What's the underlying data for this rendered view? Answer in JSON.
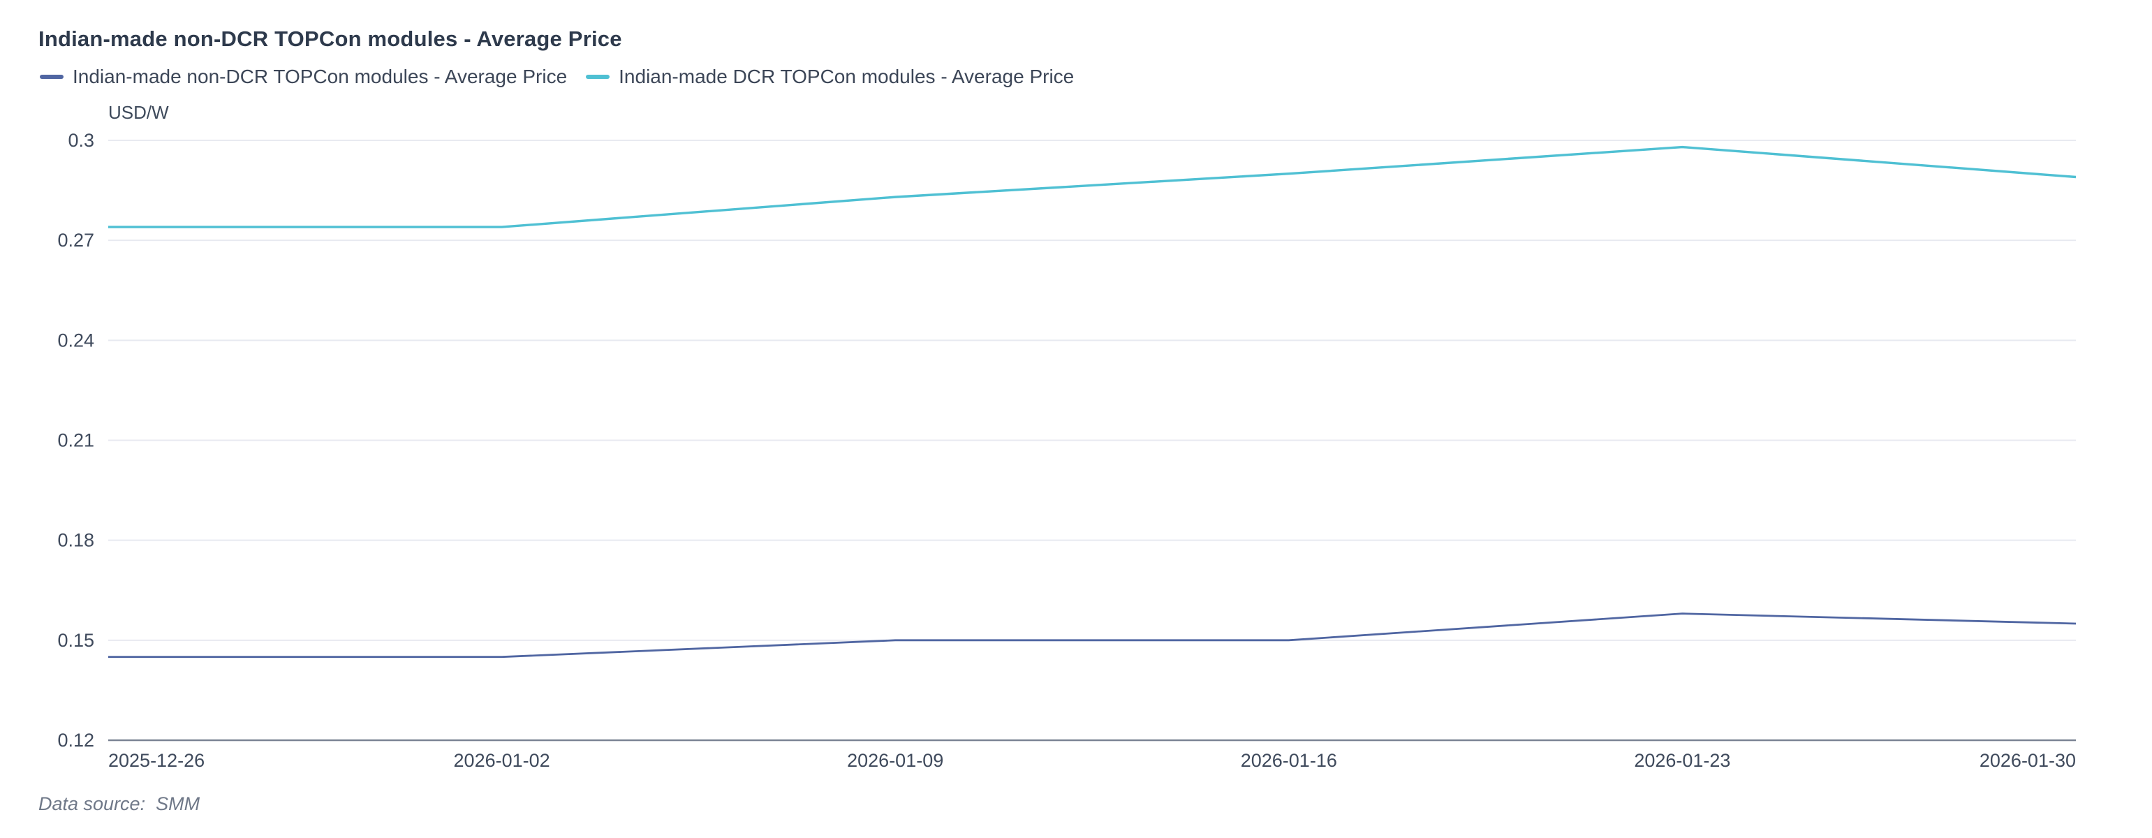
{
  "chart": {
    "title": "Indian-made non-DCR TOPCon modules - Average Price",
    "chart_data": {
      "type": "line",
      "x": [
        "2025-12-26",
        "2026-01-02",
        "2026-01-09",
        "2026-01-16",
        "2026-01-23",
        "2026-01-30"
      ],
      "series": [
        {
          "name": "Indian-made non-DCR TOPCon modules - Average Price",
          "color": "#5066a2",
          "values": [
            0.145,
            0.145,
            0.15,
            0.15,
            0.158,
            0.155
          ]
        },
        {
          "name": "Indian-made DCR TOPCon modules - Average Price",
          "color": "#4fc0d3",
          "values": [
            0.274,
            0.274,
            0.283,
            0.29,
            0.298,
            0.289
          ]
        }
      ],
      "title": "Indian-made non-DCR TOPCon modules - Average Price",
      "xlabel": "",
      "ylabel": "USD/W",
      "ylim": [
        0.12,
        0.3
      ],
      "ytick_step": 0.03,
      "yticks": [
        0.12,
        0.15,
        0.18,
        0.21,
        0.24,
        0.27,
        0.3
      ],
      "grid": true,
      "legend_position": "top-left"
    }
  },
  "colors": {
    "gridline": "#e8eaf1",
    "axis_line": "#7b8494",
    "axis_text": "#3f4a5c"
  },
  "footer": {
    "text": "Data source:  SMM"
  }
}
